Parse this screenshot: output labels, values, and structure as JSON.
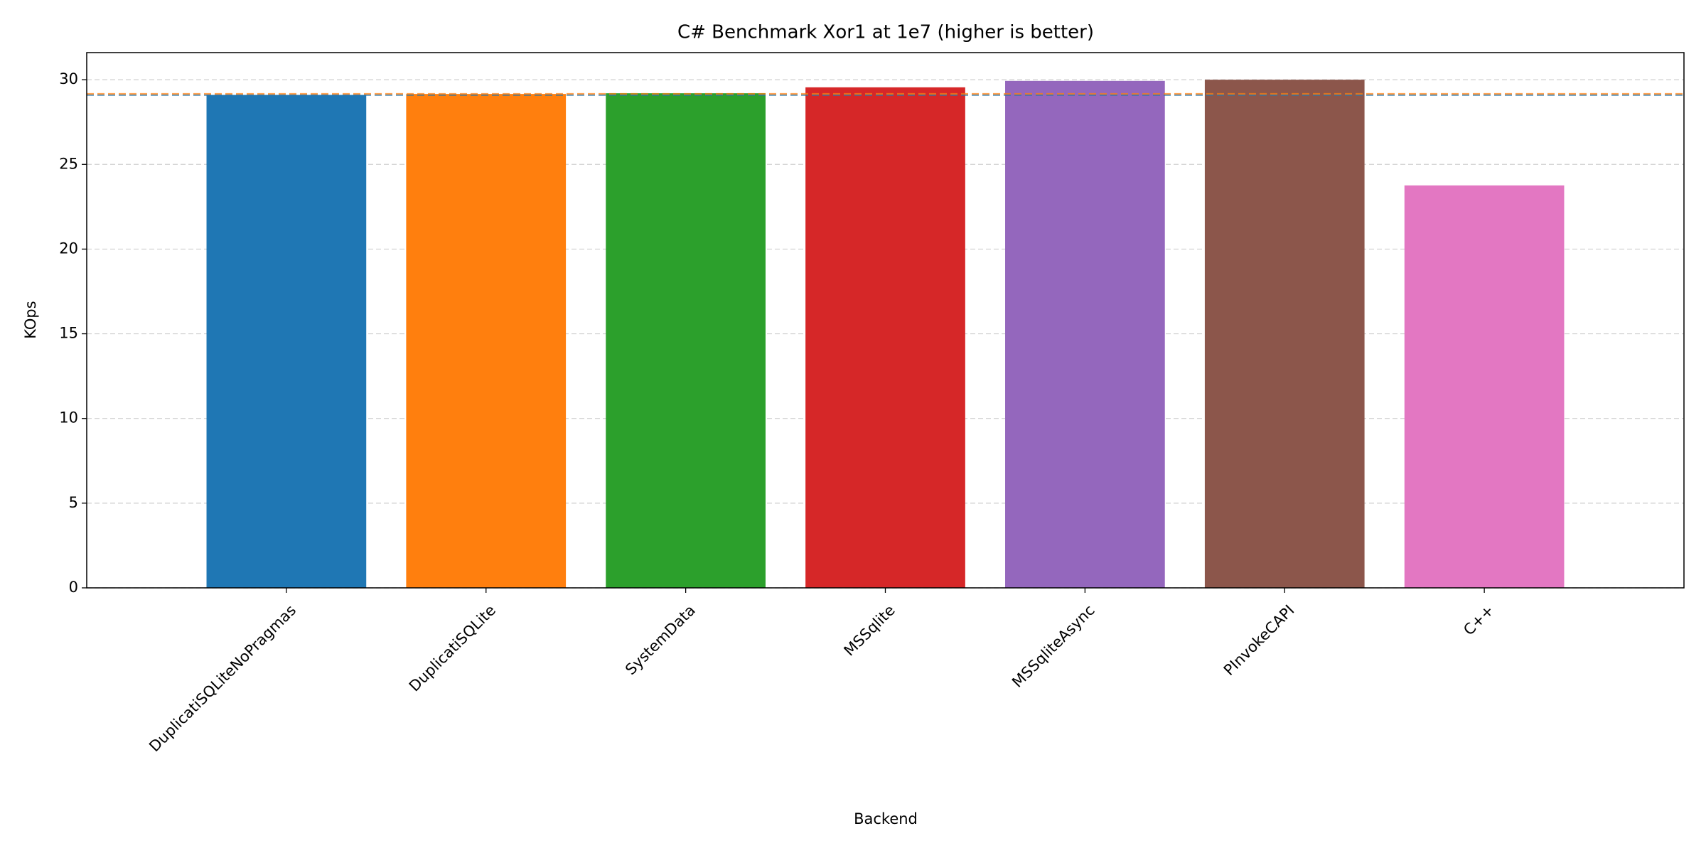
{
  "chart_data": {
    "type": "bar",
    "title": "C# Benchmark Xor1 at 1e7 (higher is better)",
    "x_label": "Backend",
    "y_label": "KOps",
    "categories": [
      "DuplicatiSQLiteNoPragmas",
      "DuplicatiSQLite",
      "SystemData",
      "MSSqlite",
      "MSSqliteAsync",
      "PInvokeCAPI",
      "C++"
    ],
    "values": [
      29.1,
      29.16,
      29.2,
      29.55,
      29.93,
      30.0,
      23.76
    ],
    "colors": [
      "#1f77b4",
      "#ff7f0e",
      "#2ca02c",
      "#d62728",
      "#9467bd",
      "#8c564b",
      "#e377c2"
    ],
    "ylim": [
      0,
      31.6
    ],
    "yticks": [
      0,
      5,
      10,
      15,
      20,
      25,
      30
    ],
    "grid": true
  }
}
